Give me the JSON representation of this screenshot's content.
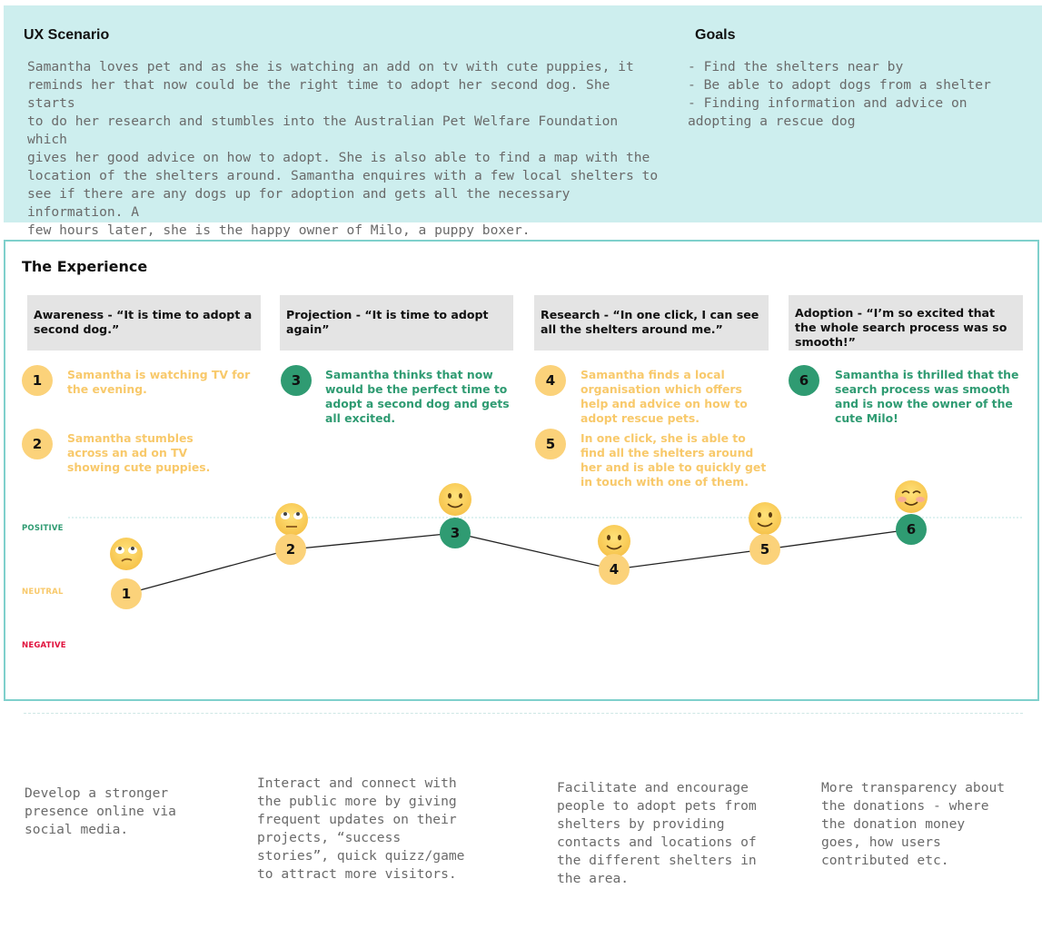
{
  "scenario": {
    "title": "UX Scenario",
    "lines": [
      "Samantha loves pet and as she is watching an add on tv with cute puppies, it",
      "reminds her that now could be the right time to adopt her second dog. She starts",
      "to do her research and stumbles into the Australian Pet Welfare Foundation which",
      "gives her good advice on how to adopt. She is also able to find a map with the",
      "location of the shelters around. Samantha enquires with a few local shelters to",
      "see if there are any dogs up for adoption and gets all the necessary information. A",
      "few hours later, she is the happy owner of Milo, a puppy boxer."
    ]
  },
  "goals": {
    "title": "Goals",
    "items": [
      "- Find the shelters near by",
      "- Be able to adopt dogs from a shelter",
      "- Finding information and advice on",
      "adopting a rescue dog"
    ]
  },
  "experience": {
    "title": "The Experience",
    "phases": [
      "Awareness - “It is time to adopt a second dog.”",
      "Projection - “It is time to adopt again”",
      "Research - “In one click, I can see all the shelters around me.”",
      "Adoption - “I’m so excited that the whole search process was so smooth!”"
    ],
    "steps": [
      {
        "num": "1",
        "text": "Samantha is watching TV for the evening."
      },
      {
        "num": "2",
        "text": "Samantha stumbles across an ad on TV showing cute puppies."
      },
      {
        "num": "3",
        "text": "Samantha thinks that now would be the perfect time to adopt a second dog and gets all excited."
      },
      {
        "num": "4",
        "text": "Samantha finds a local organisation which offers help and advice on how to adopt rescue pets."
      },
      {
        "num": "5",
        "text": "In one click, she is able to find all the shelters around her and is able to quickly get in touch with one of them."
      },
      {
        "num": "6",
        "text": "Samantha is thrilled that the search process was smooth and is now the owner of the cute Milo!"
      }
    ],
    "levels": {
      "positive": "POSITIVE",
      "neutral": "NEUTRAL",
      "negative": "NEGATIVE"
    },
    "journey_sentiment": [
      {
        "step": "1",
        "level": "neutral",
        "emoji": "eye-roll-icon"
      },
      {
        "step": "2",
        "level": "slightly-positive",
        "emoji": "eye-roll-icon"
      },
      {
        "step": "3",
        "level": "positive",
        "emoji": "smile-icon"
      },
      {
        "step": "4",
        "level": "slightly-positive",
        "emoji": "smile-icon"
      },
      {
        "step": "5",
        "level": "slightly-positive",
        "emoji": "smile-icon"
      },
      {
        "step": "6",
        "level": "positive",
        "emoji": "blush-icon"
      }
    ]
  },
  "recommendations": [
    "Develop a stronger presence online via social media.",
    "Interact and connect with the public more by giving frequent updates on their projects, “success stories”, quick quizz/game to attract more visitors.",
    "Facilitate and encourage people to adopt pets from shelters by providing contacts and locations of the different shelters in the area.",
    "More transparency about the donations - where the donation money goes, how users contributed etc."
  ],
  "colors": {
    "scenario_bg": "#cdeeee",
    "border": "#7fd0cc",
    "yellow": "#fbd27a",
    "green": "#2f9b72",
    "positive": "#2f9b72",
    "neutral": "#f8c96b",
    "negative": "#e0103c"
  }
}
